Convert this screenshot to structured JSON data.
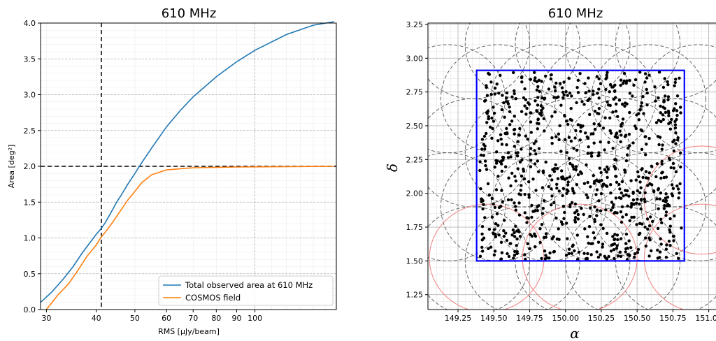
{
  "chart_data": [
    {
      "type": "line",
      "title": "610 MHz",
      "xlabel": "RMS [μJy/beam]",
      "ylabel": "Area [deg²]",
      "xscale": "log",
      "xlim": [
        29,
        160
      ],
      "ylim": [
        0,
        4.0
      ],
      "xticks": [
        30,
        40,
        50,
        60,
        70,
        80,
        90,
        100
      ],
      "yticks": [
        0.0,
        0.5,
        1.0,
        1.5,
        2.0,
        2.5,
        3.0,
        3.5,
        4.0
      ],
      "grid": true,
      "legend_position": "lower-right",
      "vline_x": 41.2,
      "hline_y": 2.0,
      "series": [
        {
          "name": "Total observed area at 610 MHz",
          "color": "#1f77b4",
          "x": [
            29,
            31,
            33,
            35,
            37,
            39,
            40,
            41,
            42,
            43,
            44,
            45,
            46,
            48,
            50,
            52,
            55,
            60,
            65,
            70,
            80,
            90,
            100,
            120,
            140,
            158
          ],
          "y": [
            0.1,
            0.25,
            0.42,
            0.6,
            0.8,
            0.97,
            1.05,
            1.12,
            1.2,
            1.3,
            1.4,
            1.5,
            1.58,
            1.75,
            1.9,
            2.05,
            2.25,
            2.55,
            2.78,
            2.97,
            3.25,
            3.46,
            3.62,
            3.84,
            3.97,
            4.02
          ]
        },
        {
          "name": "COSMOS field",
          "color": "#ff7f0e",
          "x": [
            30,
            31,
            32,
            34,
            36,
            38,
            40,
            41,
            42,
            44,
            46,
            48,
            50,
            52,
            55,
            60,
            70,
            90,
            158
          ],
          "y": [
            0.0,
            0.1,
            0.2,
            0.35,
            0.55,
            0.75,
            0.9,
            1.0,
            1.07,
            1.22,
            1.38,
            1.53,
            1.65,
            1.77,
            1.88,
            1.95,
            1.98,
            1.99,
            2.0
          ]
        }
      ]
    },
    {
      "type": "scatter",
      "title": "610 MHz",
      "xlabel": "α",
      "ylabel": "δ",
      "xlim": [
        149.04,
        151.08
      ],
      "ylim": [
        1.14,
        3.26
      ],
      "xticks": [
        149.25,
        149.5,
        149.75,
        150.0,
        150.25,
        150.5,
        150.75,
        151.0
      ],
      "yticks": [
        1.25,
        1.5,
        1.75,
        2.0,
        2.25,
        2.5,
        2.75,
        3.0,
        3.25
      ],
      "grid": true,
      "box": {
        "ra": [
          149.38,
          150.83
        ],
        "dec": [
          1.5,
          2.91
        ],
        "color": "#0000ff"
      },
      "points_count": 900,
      "pointings_grey": [
        [
          149.35,
          3.1
        ],
        [
          149.7,
          3.1
        ],
        [
          150.05,
          3.1
        ],
        [
          150.4,
          3.1
        ],
        [
          150.75,
          3.1
        ],
        [
          149.18,
          2.7
        ],
        [
          149.53,
          2.7
        ],
        [
          149.88,
          2.7
        ],
        [
          150.23,
          2.7
        ],
        [
          150.58,
          2.7
        ],
        [
          150.93,
          2.7
        ],
        [
          149.35,
          2.3
        ],
        [
          149.7,
          2.3
        ],
        [
          150.05,
          2.3
        ],
        [
          150.4,
          2.3
        ],
        [
          150.75,
          2.3
        ],
        [
          149.18,
          1.9
        ],
        [
          149.53,
          1.9
        ],
        [
          149.88,
          1.9
        ],
        [
          150.23,
          1.9
        ],
        [
          150.58,
          1.9
        ],
        [
          150.93,
          1.9
        ],
        [
          149.35,
          1.5
        ],
        [
          149.7,
          1.5
        ],
        [
          150.05,
          1.5
        ],
        [
          150.4,
          1.5
        ],
        [
          150.75,
          1.5
        ]
      ],
      "pointings_red": [
        [
          149.45,
          1.52
        ],
        [
          150.1,
          1.52
        ],
        [
          150.95,
          1.52
        ],
        [
          150.95,
          1.95
        ]
      ],
      "circle_radius_deg": 0.4
    }
  ]
}
